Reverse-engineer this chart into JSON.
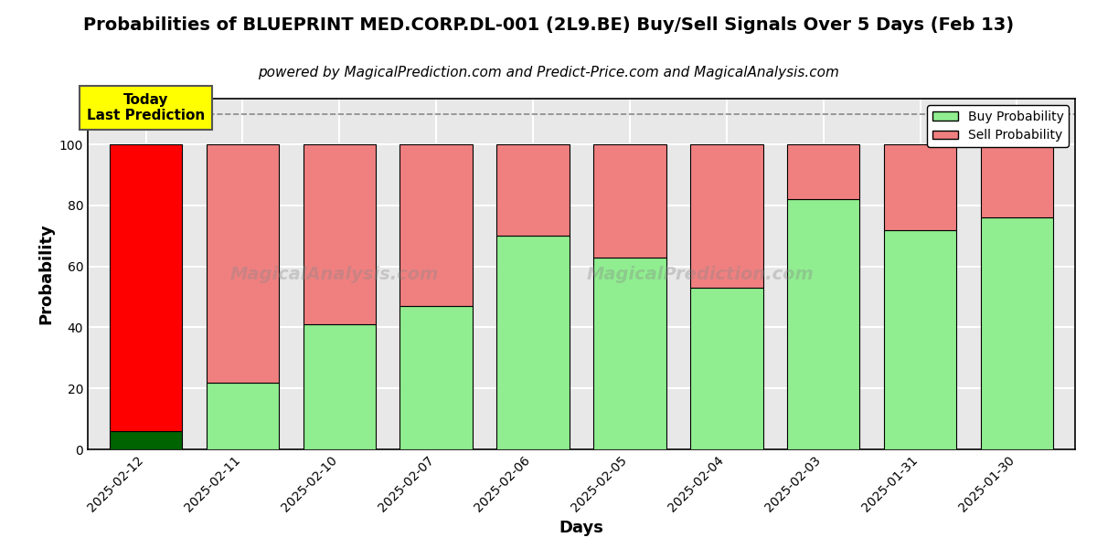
{
  "title": "Probabilities of BLUEPRINT MED.CORP.DL-001 (2L9.BE) Buy/Sell Signals Over 5 Days (Feb 13)",
  "subtitle": "powered by MagicalPrediction.com and Predict-Price.com and MagicalAnalysis.com",
  "xlabel": "Days",
  "ylabel": "Probability",
  "categories": [
    "2025-02-12",
    "2025-02-11",
    "2025-02-10",
    "2025-02-07",
    "2025-02-06",
    "2025-02-05",
    "2025-02-04",
    "2025-02-03",
    "2025-01-31",
    "2025-01-30"
  ],
  "buy_values": [
    6,
    22,
    41,
    47,
    70,
    63,
    53,
    82,
    72,
    76
  ],
  "sell_values": [
    94,
    78,
    59,
    53,
    30,
    37,
    47,
    18,
    28,
    24
  ],
  "buy_color_today": "#006400",
  "sell_color_today": "#ff0000",
  "buy_color_normal": "#90ee90",
  "sell_color_normal": "#f08080",
  "today_label": "Today\nLast Prediction",
  "legend_buy": "Buy Probability",
  "legend_sell": "Sell Probability",
  "ylim": [
    0,
    115
  ],
  "yticks": [
    0,
    20,
    40,
    60,
    80,
    100
  ],
  "hline_y": 110,
  "background_color": "#ffffff",
  "plot_bg_color": "#e8e8e8",
  "grid_color": "#ffffff",
  "bar_edge_color": "#000000",
  "today_box_color": "#ffff00",
  "title_fontsize": 14,
  "subtitle_fontsize": 11,
  "axis_label_fontsize": 13,
  "bar_width": 0.75
}
